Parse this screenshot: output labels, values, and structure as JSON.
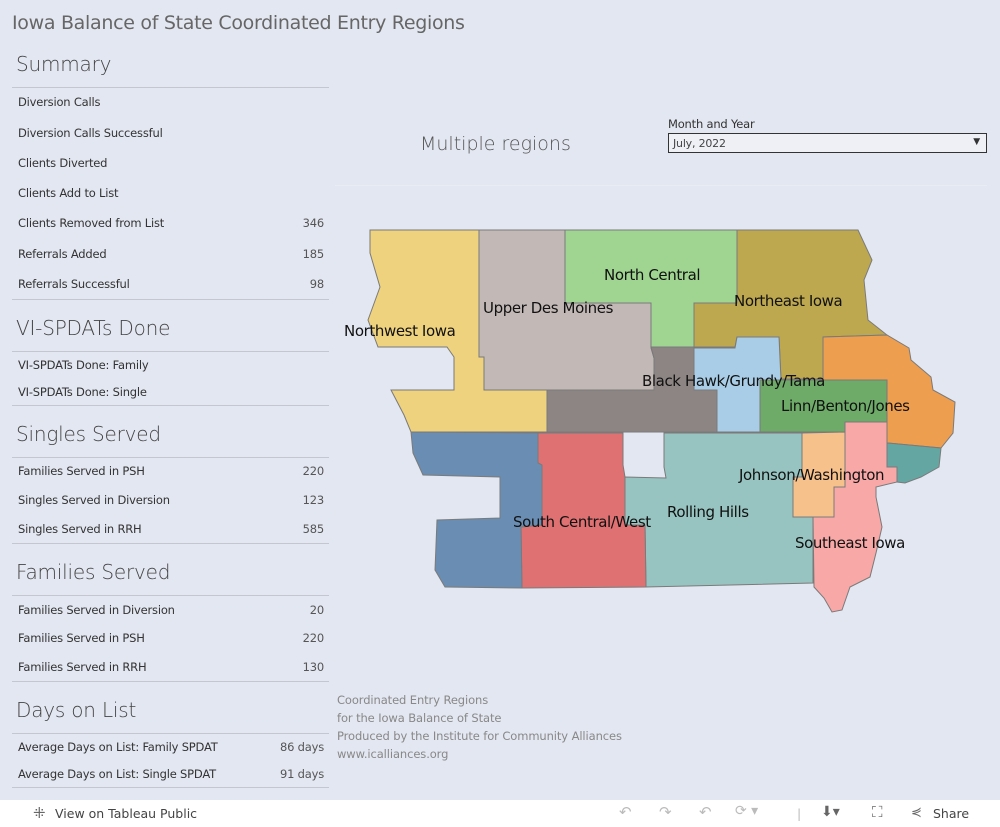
{
  "title": "Iowa Balance of State Coordinated Entry Regions",
  "sections": [
    {
      "header": "Summary",
      "rows": [
        {
          "label": "Diversion Calls",
          "value": ""
        },
        {
          "label": "Diversion Calls Successful",
          "value": ""
        },
        {
          "label": "Clients Diverted",
          "value": ""
        },
        {
          "label": "Clients Add to List",
          "value": ""
        },
        {
          "label": "Clients Removed from List",
          "value": "346"
        },
        {
          "label": "Referrals Added",
          "value": "185"
        },
        {
          "label": "Referrals Successful",
          "value": "98"
        }
      ]
    },
    {
      "header": "VI-SPDATs Done",
      "rows": [
        {
          "label": "VI-SPDATs Done: Family",
          "value": ""
        },
        {
          "label": "VI-SPDATs Done: Single",
          "value": ""
        }
      ]
    },
    {
      "header": "Singles Served",
      "rows": [
        {
          "label": "Families Served in PSH",
          "value": "220"
        },
        {
          "label": "Singles Served in Diversion",
          "value": "123"
        },
        {
          "label": "Singles Served in RRH",
          "value": "585"
        }
      ]
    },
    {
      "header": "Families Served",
      "rows": [
        {
          "label": "Families Served in Diversion",
          "value": "20"
        },
        {
          "label": "Families Served in PSH",
          "value": "220"
        },
        {
          "label": "Families Served in RRH",
          "value": "130"
        }
      ]
    },
    {
      "header": "Days on List",
      "rows": [
        {
          "label": "Average Days on List: Family SPDAT",
          "value": "86 days"
        },
        {
          "label": "Average Days on List: Single SPDAT",
          "value": "91 days"
        }
      ]
    }
  ],
  "map": {
    "title": "Multiple regions",
    "filter": {
      "label": "Month and Year",
      "value": "July, 2022"
    },
    "regions": [
      {
        "name": "Northwest Iowa",
        "color": "#eed27e"
      },
      {
        "name": "Upper Des Moines",
        "color": "#c2b9b7"
      },
      {
        "name": "North Central",
        "color": "#9fd591"
      },
      {
        "name": "Northeast Iowa",
        "color": "#bda850"
      },
      {
        "name": "Black Hawk/Grundy/Tama",
        "color": "#8c8584"
      },
      {
        "name": "",
        "color": "#a9cde6"
      },
      {
        "name": "Linn/Benton/Jones",
        "color": "#6fab68"
      },
      {
        "name": "",
        "color": "#ee9e4f"
      },
      {
        "name": "",
        "color": "#64a6a2"
      },
      {
        "name": "Southeast Iowa",
        "color": "#f7a8a7"
      },
      {
        "name": "Johnson/Washington",
        "color": "#f7c18c"
      },
      {
        "name": "Rolling Hills",
        "color": "#97c4c0"
      },
      {
        "name": "South Central/West",
        "color": "#e07173"
      },
      {
        "name": "",
        "color": "#6a8db3"
      }
    ]
  },
  "footer": [
    "Coordinated Entry Regions",
    "for the Iowa Balance of State",
    "Produced by the Institute for Community Alliances",
    "www.icalliances.org"
  ],
  "toolbar": {
    "view_label": "View on Tableau Public",
    "share_label": "Share"
  }
}
